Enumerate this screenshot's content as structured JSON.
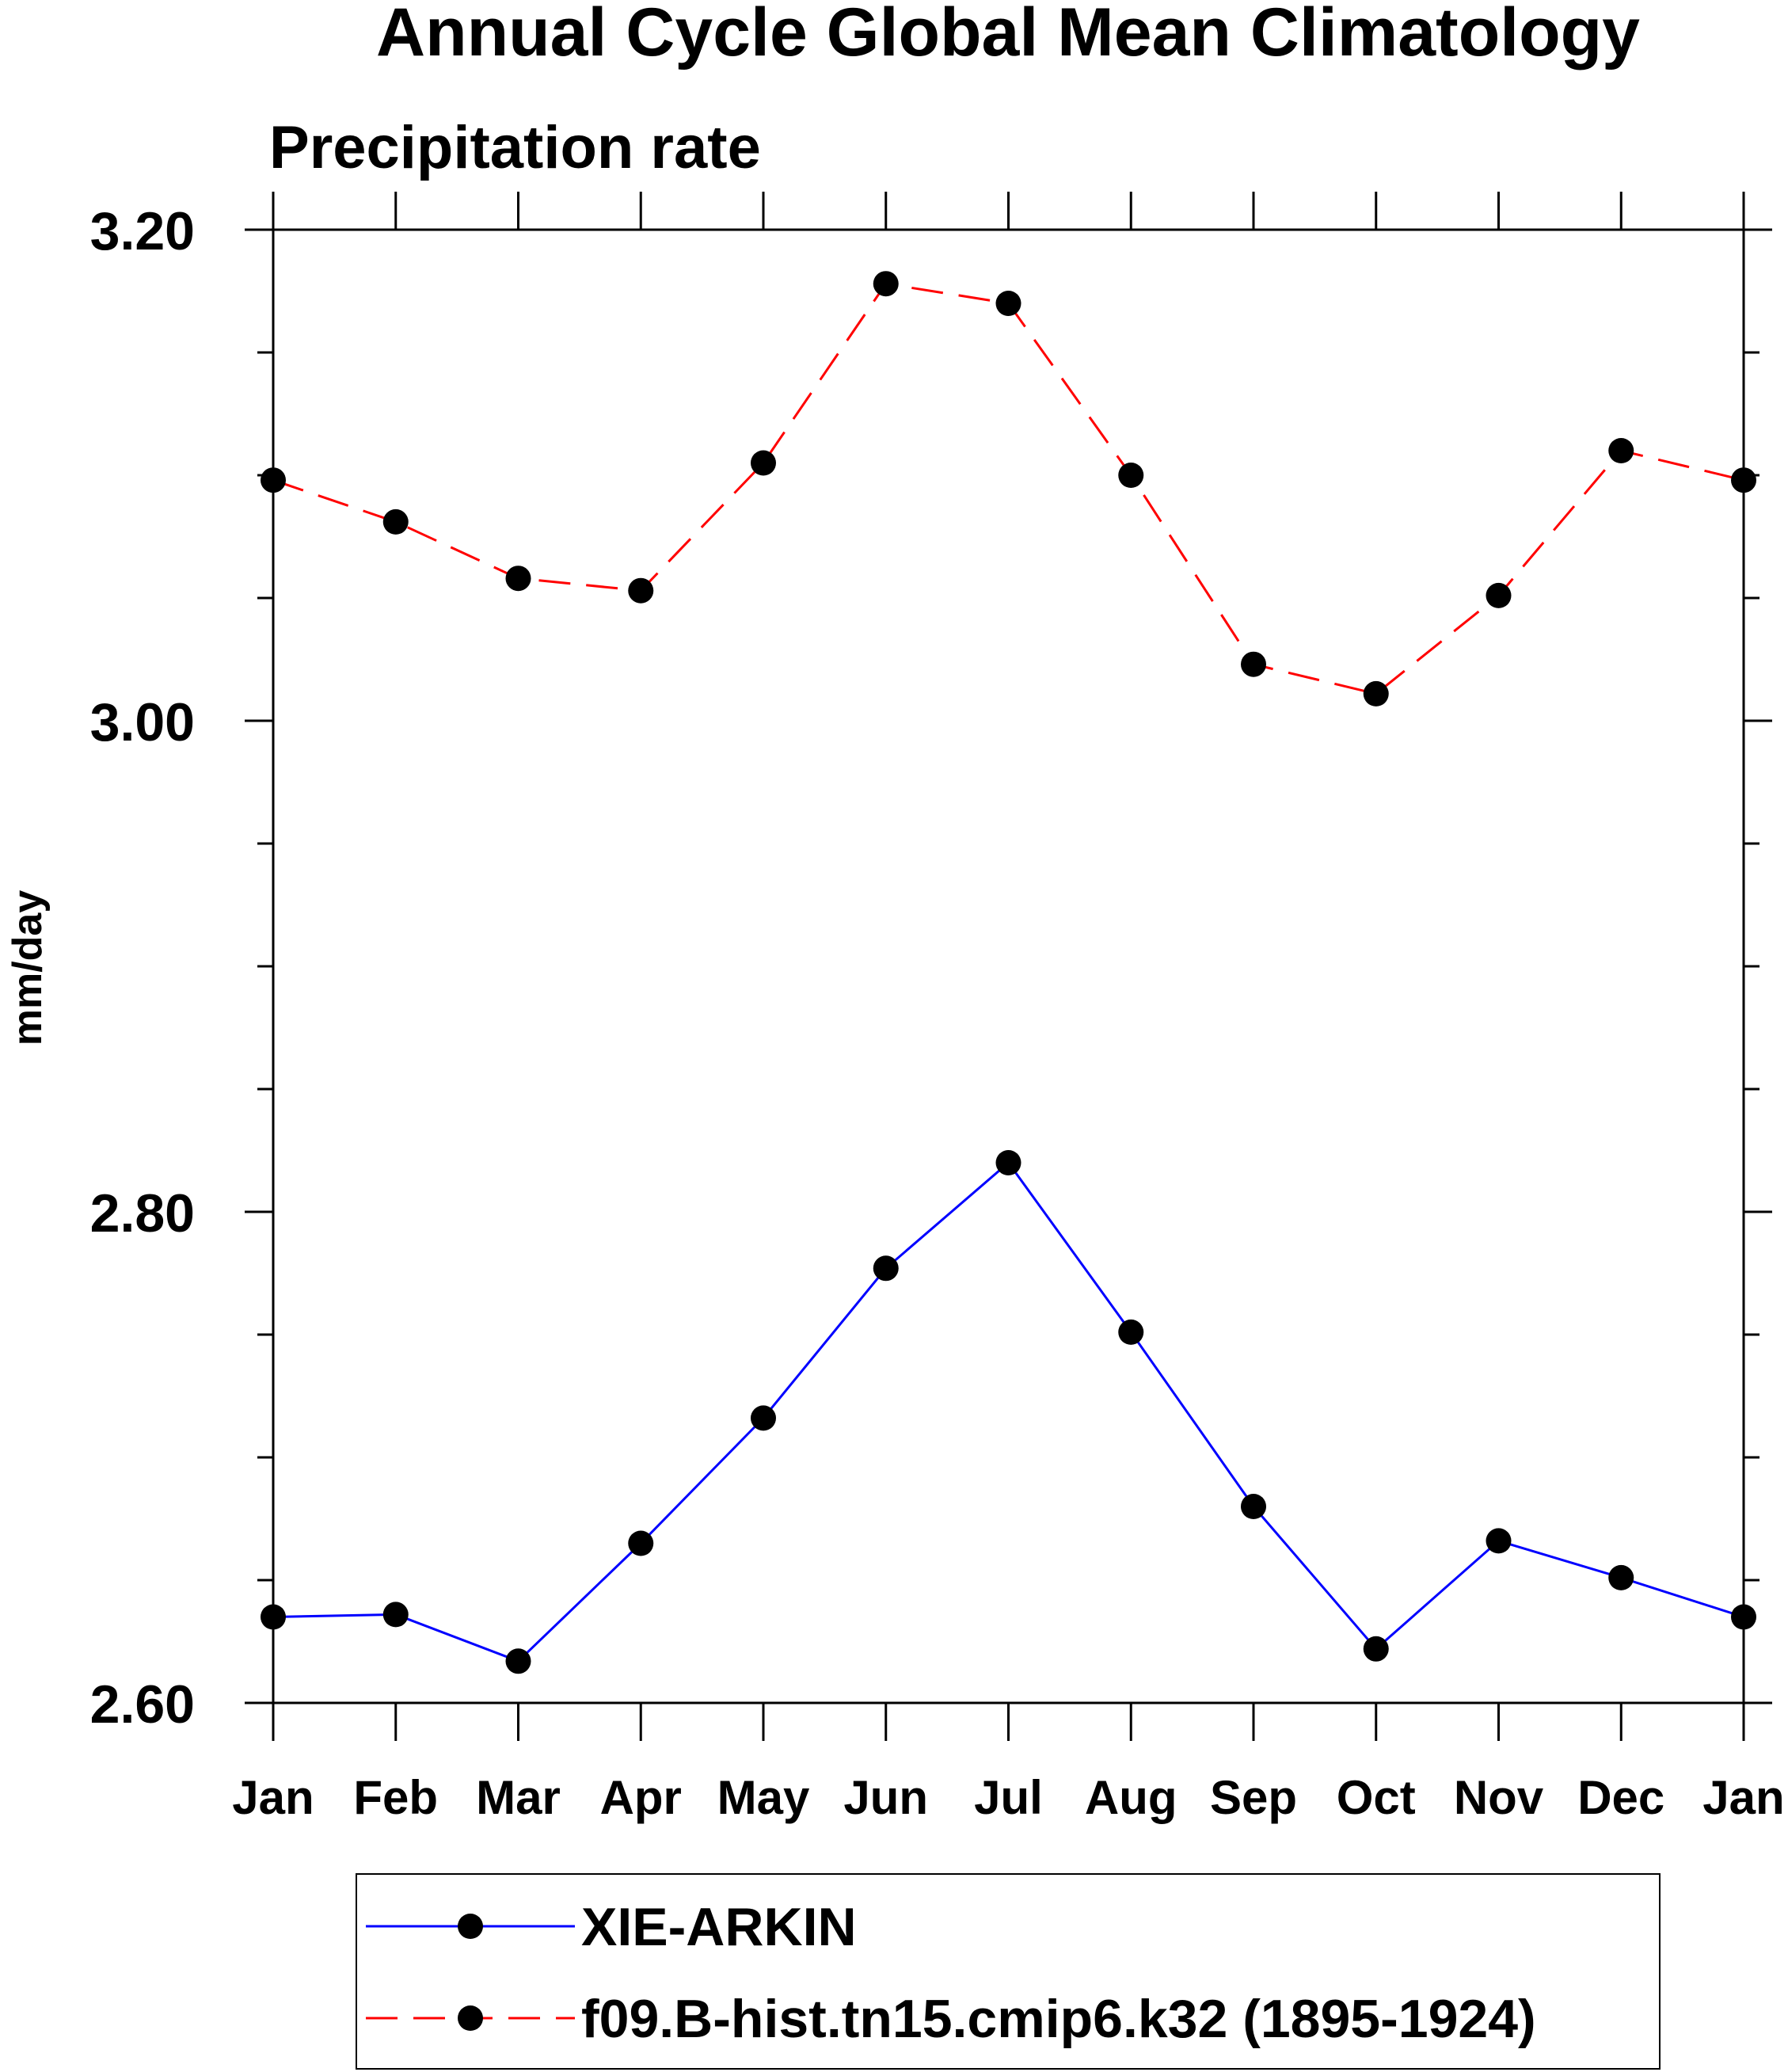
{
  "chart_data": {
    "type": "line",
    "title": "Annual Cycle Global Mean Climatology",
    "subtitle": "Precipitation rate",
    "xlabel": "",
    "ylabel": "mm/day",
    "categories": [
      "Jan",
      "Feb",
      "Mar",
      "Apr",
      "May",
      "Jun",
      "Jul",
      "Aug",
      "Sep",
      "Oct",
      "Nov",
      "Dec",
      "Jan"
    ],
    "ylim": [
      2.6,
      3.2
    ],
    "yticks": [
      "2.60",
      "2.80",
      "3.00",
      "3.20"
    ],
    "grid": false,
    "legend_position": "bottom",
    "series": [
      {
        "name": "XIE-ARKIN",
        "color": "#0000ff",
        "dash": "solid",
        "marker": "filled-circle",
        "values": [
          2.635,
          2.636,
          2.617,
          2.665,
          2.716,
          2.777,
          2.82,
          2.751,
          2.68,
          2.622,
          2.666,
          2.651,
          2.635
        ]
      },
      {
        "name": "f09.B-hist.tn15.cmip6.k32 (1895-1924)",
        "color": "#ff0000",
        "dash": "dashed",
        "marker": "filled-circle",
        "values": [
          3.098,
          3.081,
          3.058,
          3.053,
          3.105,
          3.178,
          3.17,
          3.1,
          3.023,
          3.011,
          3.051,
          3.11,
          3.098
        ]
      }
    ]
  }
}
